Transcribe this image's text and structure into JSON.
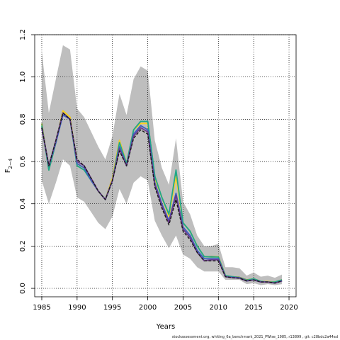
{
  "chart_data": {
    "type": "line",
    "title": "",
    "xlabel": "Years",
    "ylabel_main": "F",
    "ylabel_sub": "2−4",
    "xlim": [
      1984,
      2021
    ],
    "ylim": [
      -0.04,
      1.2
    ],
    "x_ticks": [
      1985,
      1990,
      1995,
      2000,
      2005,
      2010,
      2015,
      2020
    ],
    "y_ticks": [
      0.0,
      0.2,
      0.4,
      0.6,
      0.8,
      1.0,
      1.2
    ],
    "y_tick_labels": [
      "0.0",
      "0.2",
      "0.4",
      "0.6",
      "0.8",
      "1.0",
      "1.2"
    ],
    "grid": "dotted",
    "band_color": "#bebebe",
    "x": [
      1985,
      1986,
      1987,
      1988,
      1989,
      1990,
      1991,
      1992,
      1993,
      1994,
      1995,
      1996,
      1997,
      1998,
      1999,
      2000,
      2001,
      2002,
      2003,
      2004,
      2005,
      2006,
      2007,
      2008,
      2009,
      2010,
      2011,
      2012,
      2013,
      2014,
      2015,
      2016,
      2017,
      2018,
      2019
    ],
    "band_upper": [
      1.12,
      0.83,
      0.99,
      1.15,
      1.13,
      0.85,
      0.81,
      0.74,
      0.67,
      0.61,
      0.72,
      0.92,
      0.82,
      0.99,
      1.05,
      1.03,
      0.7,
      0.57,
      0.49,
      0.71,
      0.41,
      0.35,
      0.25,
      0.2,
      0.2,
      0.21,
      0.1,
      0.1,
      0.095,
      0.06,
      0.075,
      0.055,
      0.06,
      0.05,
      0.065
    ],
    "band_lower": [
      0.51,
      0.4,
      0.5,
      0.61,
      0.58,
      0.43,
      0.41,
      0.36,
      0.31,
      0.28,
      0.34,
      0.47,
      0.4,
      0.5,
      0.53,
      0.51,
      0.32,
      0.25,
      0.19,
      0.25,
      0.16,
      0.14,
      0.1,
      0.08,
      0.08,
      0.08,
      0.04,
      0.04,
      0.04,
      0.02,
      0.025,
      0.015,
      0.02,
      0.015,
      0.02
    ],
    "series": [
      {
        "color": "#6a8a2a",
        "values": [
          0.78,
          0.56,
          0.69,
          0.84,
          0.81,
          0.58,
          0.56,
          0.51,
          0.46,
          0.42,
          0.52,
          0.7,
          0.59,
          0.75,
          0.79,
          0.79,
          0.53,
          0.43,
          0.35,
          0.54,
          0.31,
          0.27,
          0.2,
          0.15,
          0.15,
          0.15,
          0.06,
          0.055,
          0.052,
          0.04,
          0.045,
          0.033,
          0.03,
          0.03,
          0.04
        ]
      },
      {
        "color": "#ffd21a",
        "values": [
          0.77,
          0.57,
          0.69,
          0.84,
          0.81,
          0.59,
          0.57,
          0.51,
          0.46,
          0.42,
          0.52,
          0.7,
          0.59,
          0.75,
          0.78,
          0.78,
          0.52,
          0.43,
          0.34,
          0.53,
          0.31,
          0.27,
          0.2,
          0.15,
          0.148,
          0.15,
          0.06,
          0.055,
          0.05,
          0.038,
          0.045,
          0.033,
          0.032,
          0.03,
          0.04
        ]
      },
      {
        "color": "#1fa88a",
        "values": [
          0.77,
          0.56,
          0.69,
          0.83,
          0.8,
          0.58,
          0.56,
          0.51,
          0.46,
          0.42,
          0.51,
          0.69,
          0.59,
          0.75,
          0.79,
          0.79,
          0.53,
          0.43,
          0.35,
          0.56,
          0.31,
          0.27,
          0.2,
          0.15,
          0.148,
          0.148,
          0.06,
          0.055,
          0.05,
          0.038,
          0.045,
          0.033,
          0.03,
          0.03,
          0.04
        ]
      },
      {
        "color": "#3b5fc0",
        "values": [
          0.76,
          0.58,
          0.69,
          0.82,
          0.8,
          0.59,
          0.57,
          0.51,
          0.46,
          0.42,
          0.51,
          0.67,
          0.58,
          0.73,
          0.77,
          0.75,
          0.5,
          0.4,
          0.32,
          0.45,
          0.29,
          0.25,
          0.18,
          0.14,
          0.14,
          0.14,
          0.055,
          0.052,
          0.05,
          0.035,
          0.04,
          0.03,
          0.03,
          0.025,
          0.035
        ]
      },
      {
        "color": "#6b3a8c",
        "values": [
          0.76,
          0.58,
          0.7,
          0.83,
          0.8,
          0.6,
          0.58,
          0.52,
          0.46,
          0.42,
          0.51,
          0.66,
          0.58,
          0.72,
          0.76,
          0.74,
          0.49,
          0.39,
          0.31,
          0.44,
          0.28,
          0.24,
          0.17,
          0.13,
          0.135,
          0.135,
          0.055,
          0.05,
          0.048,
          0.035,
          0.04,
          0.03,
          0.03,
          0.025,
          0.035
        ]
      },
      {
        "color": "#1a1a1a",
        "dashed": true,
        "values": [
          0.76,
          0.58,
          0.7,
          0.83,
          0.8,
          0.61,
          0.58,
          0.52,
          0.46,
          0.42,
          0.51,
          0.65,
          0.58,
          0.71,
          0.75,
          0.73,
          0.48,
          0.38,
          0.3,
          0.42,
          0.27,
          0.23,
          0.17,
          0.13,
          0.13,
          0.13,
          0.055,
          0.05,
          0.048,
          0.035,
          0.04,
          0.03,
          0.03,
          0.025,
          0.035
        ]
      }
    ]
  },
  "footer": "stockassessment.org,  whiting_6a_benchmark_2021_PWise_1985, r13899 ,  git: c28bdc2a44ad"
}
